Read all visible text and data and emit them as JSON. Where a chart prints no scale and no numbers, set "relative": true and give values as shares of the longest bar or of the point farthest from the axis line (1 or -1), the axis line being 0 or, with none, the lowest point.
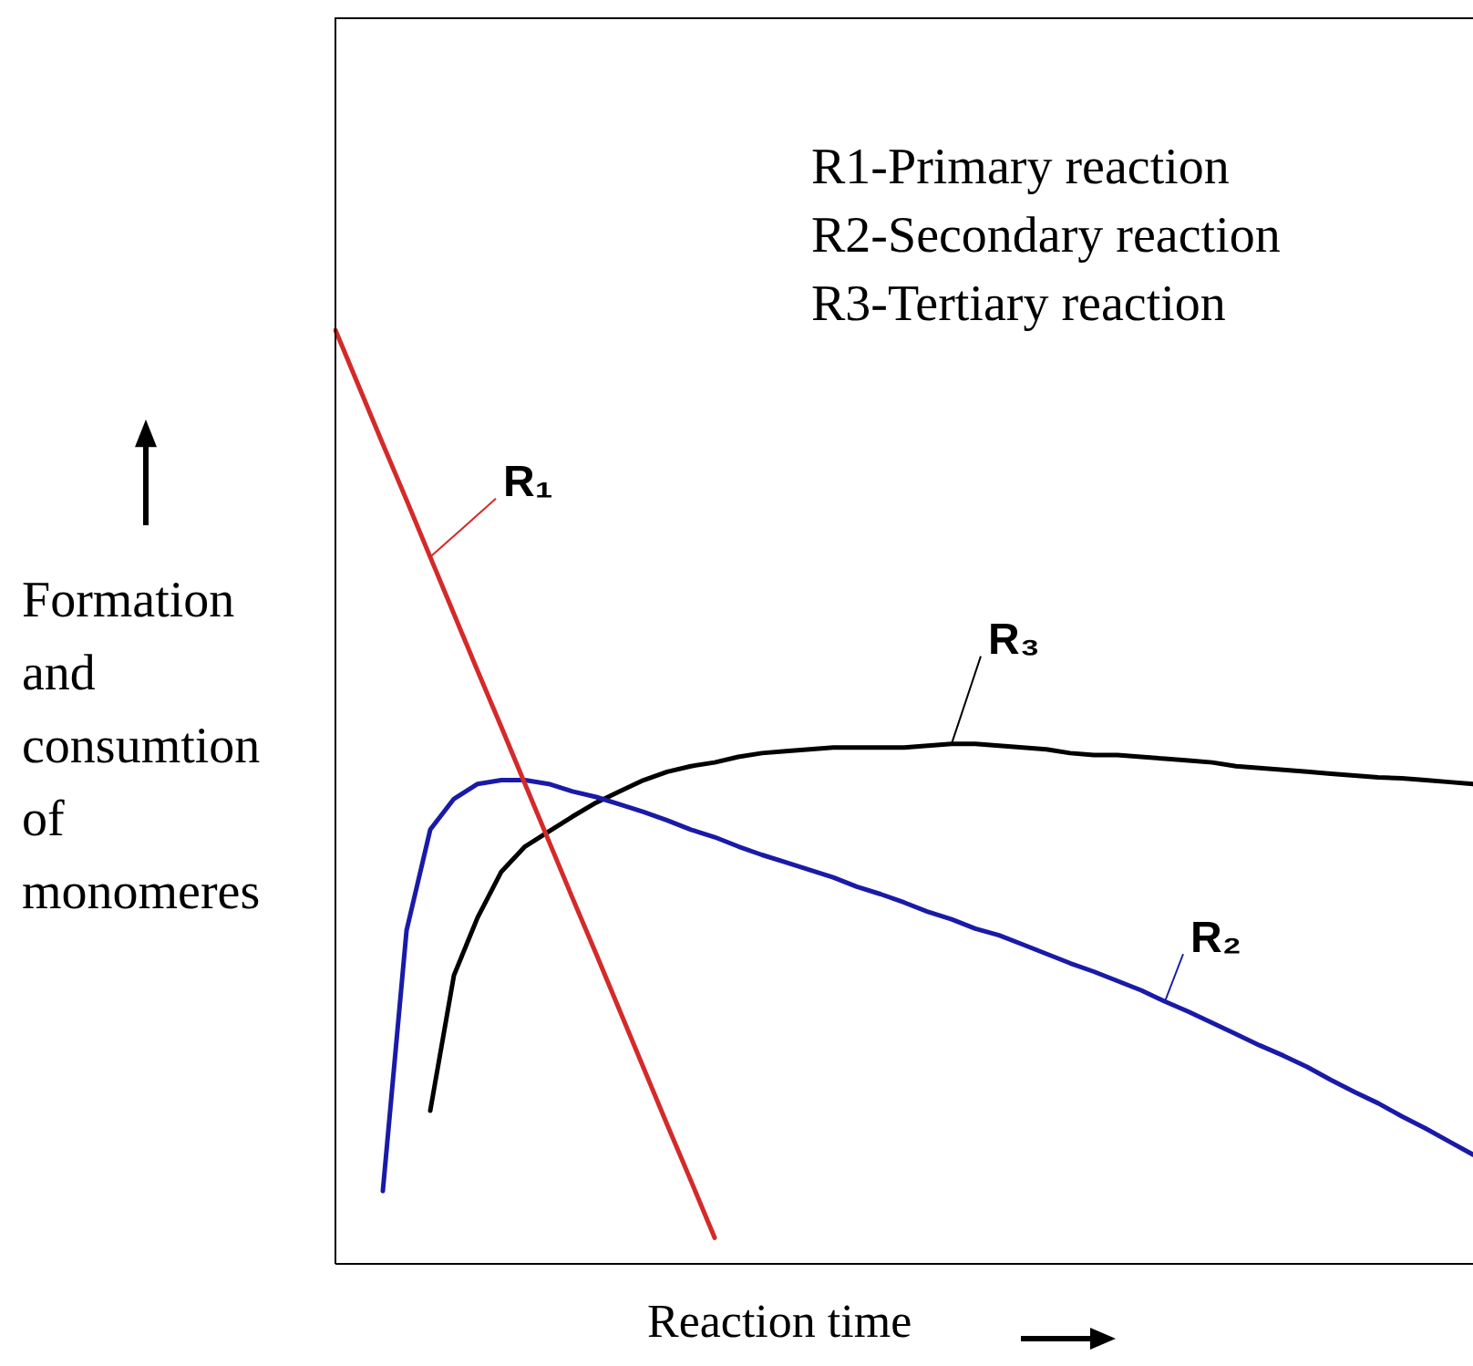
{
  "chart_data": {
    "type": "line",
    "relative": true,
    "xlabel": "Reaction time",
    "ylabel": "Formation and consumtion of monomeres",
    "legend": false,
    "grid": false,
    "marker": "none",
    "line_style": "solid",
    "annotations": [
      "R1-Primary reaction",
      "R2-Secondary reaction",
      "R3-Tertiary reaction"
    ],
    "categories": [
      null,
      null,
      null,
      null,
      null,
      null,
      null,
      null,
      null,
      null,
      null,
      null,
      null,
      null,
      null,
      null,
      null,
      null,
      null,
      null,
      null,
      null,
      null,
      null,
      null,
      null,
      null,
      null,
      null,
      null,
      null,
      null,
      null,
      null,
      null,
      null,
      null,
      null,
      null,
      null,
      null,
      null,
      null,
      null,
      null,
      null,
      null,
      null,
      null
    ],
    "series": [
      {
        "name": "R₁",
        "color": "#d42a2a",
        "values": [
          1,
          0.939,
          0.878,
          0.818,
          0.757,
          0.696,
          0.635,
          0.575,
          0.514,
          0.453,
          0.392,
          0.332,
          0.271,
          0.21,
          0.149,
          0.089,
          0.028,
          null,
          null,
          null,
          null,
          null,
          null,
          null,
          null,
          null,
          null,
          null,
          null,
          null,
          null,
          null,
          null,
          null,
          null,
          null,
          null,
          null,
          null,
          null,
          null,
          null,
          null,
          null,
          null,
          null,
          null,
          null,
          null
        ]
      },
      {
        "name": "R₂",
        "color": "#1a1aa8",
        "values": [
          null,
          null,
          0.078,
          0.357,
          0.465,
          0.498,
          0.514,
          0.518,
          0.518,
          0.514,
          0.506,
          0.5,
          0.492,
          0.484,
          0.475,
          0.465,
          0.457,
          0.447,
          0.438,
          0.43,
          0.422,
          0.414,
          0.404,
          0.396,
          0.387,
          0.377,
          0.369,
          0.359,
          0.352,
          0.342,
          0.332,
          0.322,
          0.313,
          0.303,
          0.293,
          0.281,
          0.27,
          0.258,
          0.246,
          0.234,
          0.223,
          0.211,
          0.197,
          0.184,
          0.172,
          0.158,
          0.145,
          0.131,
          0.117
        ]
      },
      {
        "name": "R₃",
        "color": "#000000",
        "values": [
          null,
          null,
          null,
          null,
          0.164,
          0.309,
          0.371,
          0.42,
          0.447,
          0.463,
          0.479,
          0.494,
          0.506,
          0.518,
          0.527,
          0.533,
          0.537,
          0.543,
          0.547,
          0.549,
          0.551,
          0.553,
          0.553,
          0.553,
          0.553,
          0.555,
          0.557,
          0.557,
          0.555,
          0.553,
          0.551,
          0.547,
          0.545,
          0.545,
          0.543,
          0.541,
          0.539,
          0.537,
          0.533,
          0.531,
          0.529,
          0.527,
          0.525,
          0.523,
          0.521,
          0.52,
          0.518,
          0.516,
          0.514
        ]
      }
    ]
  }
}
